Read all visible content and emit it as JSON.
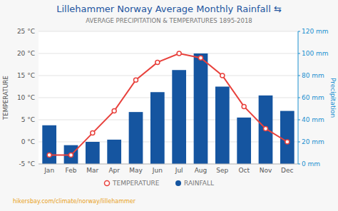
{
  "chart_data": {
    "type": "bar",
    "title": "Lillehammer Norway Average Monthly Rainfall ⇆",
    "subtitle": "AVERAGE PRECIPITATION & TEMPERATURES 1895-2018",
    "categories": [
      "Jan",
      "Feb",
      "Mar",
      "Apr",
      "May",
      "Jun",
      "Jul",
      "Aug",
      "Sep",
      "Oct",
      "Nov",
      "Dec"
    ],
    "series": [
      {
        "name": "TEMPERATURE",
        "type": "line",
        "marker": "circle",
        "color": "#e8413c",
        "values": [
          -3,
          -3,
          2,
          7,
          14,
          18,
          20,
          19,
          15,
          8,
          3,
          0
        ]
      },
      {
        "name": "RAINFALL",
        "type": "bar",
        "axis": "y2",
        "color": "#1555a0",
        "values": [
          35,
          17,
          20,
          22,
          47,
          65,
          85,
          100,
          70,
          42,
          62,
          48
        ]
      }
    ],
    "ylim": [
      -5,
      25
    ],
    "yticks": [
      {
        "value": -5,
        "label": "-5 °C"
      },
      {
        "value": 0,
        "label": "0 °C"
      },
      {
        "value": 5,
        "label": "5 °C"
      },
      {
        "value": 10,
        "label": "10 °C"
      },
      {
        "value": 15,
        "label": "15 °C"
      },
      {
        "value": 20,
        "label": "20 °C"
      },
      {
        "value": 25,
        "label": "25 °C"
      }
    ],
    "y2lim": [
      0,
      120
    ],
    "y2ticks": [
      {
        "value": 0,
        "label": "0 mm"
      },
      {
        "value": 20,
        "label": "20 mm"
      },
      {
        "value": 40,
        "label": "40 mm"
      },
      {
        "value": 60,
        "label": "60 mm"
      },
      {
        "value": 80,
        "label": "80 mm"
      },
      {
        "value": 100,
        "label": "100 mm"
      },
      {
        "value": 120,
        "label": "120 mm"
      }
    ],
    "ylabel": "TEMPERATURE",
    "y2label": "Precipitation",
    "grid": true,
    "legend": "bottom",
    "annotations": [
      "hikersbay.com/climate/norway/lillehammer"
    ]
  }
}
